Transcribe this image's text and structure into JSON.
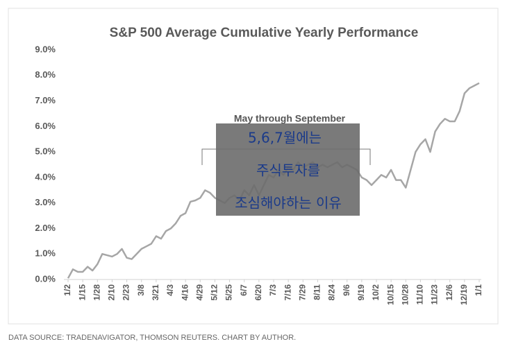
{
  "chart_data": {
    "type": "line",
    "title": "S&P 500 Average Cumulative Yearly Performance",
    "categories": [
      "1/2",
      null,
      null,
      "1/15",
      null,
      null,
      "1/28",
      null,
      null,
      "2/10",
      null,
      null,
      "2/23",
      null,
      null,
      "3/8",
      null,
      null,
      "3/21",
      null,
      null,
      "4/3",
      null,
      null,
      "4/16",
      null,
      null,
      "4/29",
      null,
      null,
      "5/12",
      null,
      null,
      "5/25",
      null,
      null,
      "6/7",
      null,
      null,
      "6/20",
      null,
      null,
      "7/3",
      null,
      null,
      "7/16",
      null,
      null,
      "7/29",
      null,
      null,
      "8/11",
      null,
      null,
      "8/24",
      null,
      null,
      "9/6",
      null,
      null,
      "9/19",
      null,
      null,
      "10/2",
      null,
      null,
      "10/15",
      null,
      null,
      "10/28",
      null,
      null,
      "11/10",
      null,
      null,
      "11/23",
      null,
      null,
      "12/6",
      null,
      null,
      "12/19",
      null,
      null,
      "1/1"
    ],
    "values": [
      0.05,
      0.4,
      0.3,
      0.3,
      0.5,
      0.35,
      0.6,
      1.0,
      0.95,
      0.9,
      1.0,
      1.2,
      0.85,
      0.8,
      1.0,
      1.2,
      1.3,
      1.4,
      1.7,
      1.6,
      1.9,
      2.0,
      2.2,
      2.5,
      2.6,
      3.05,
      3.1,
      3.2,
      3.5,
      3.4,
      3.2,
      3.1,
      3.0,
      3.2,
      3.3,
      3.1,
      3.5,
      3.3,
      3.7,
      3.3,
      3.7,
      4.1,
      4.0,
      4.3,
      4.1,
      4.4,
      4.3,
      4.6,
      4.4,
      4.5,
      4.6,
      4.4,
      4.5,
      4.4,
      4.5,
      4.6,
      4.4,
      4.5,
      4.4,
      4.3,
      4.0,
      3.9,
      3.7,
      3.9,
      4.1,
      4.0,
      4.3,
      3.9,
      3.9,
      3.6,
      4.3,
      5.0,
      5.3,
      5.5,
      5.0,
      5.8,
      6.1,
      6.3,
      6.2,
      6.2,
      6.6,
      7.3,
      7.5,
      7.6,
      7.7
    ],
    "color": "#a6a6a6",
    "ylim": [
      0,
      9
    ],
    "yticks": [
      {
        "value": 0,
        "label": "0.0%"
      },
      {
        "value": 1,
        "label": "1.0%"
      },
      {
        "value": 2,
        "label": "2.0%"
      },
      {
        "value": 3,
        "label": "3.0%"
      },
      {
        "value": 4,
        "label": "4.0%"
      },
      {
        "value": 5,
        "label": "5.0%"
      },
      {
        "value": 6,
        "label": "6.0%"
      },
      {
        "value": 7,
        "label": "7.0%"
      },
      {
        "value": 8,
        "label": "8.0%"
      },
      {
        "value": 9,
        "label": "9.0%"
      }
    ],
    "grid": false,
    "annotation": "May through September",
    "overlay_text": [
      "5,6,7월에는",
      "주식투자를",
      "조심해야하는 이유"
    ]
  },
  "footer": "DATA SOURCE: TRADENAVIGATOR, THOMSON REUTERS. CHART BY AUTHOR."
}
